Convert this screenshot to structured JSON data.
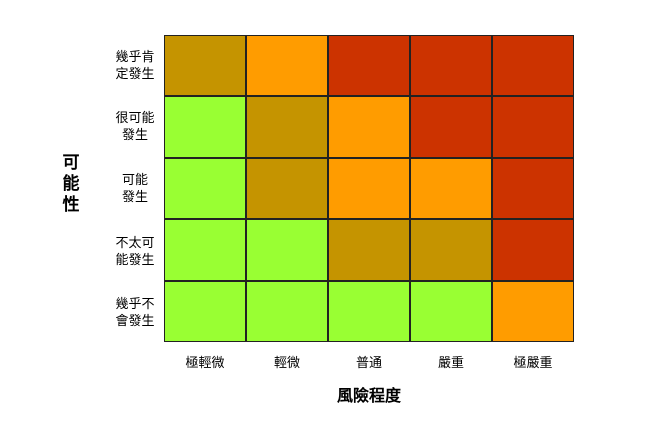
{
  "chart_data": {
    "type": "heatmap",
    "xlabel": "風險程度",
    "ylabel": "可能性",
    "x_categories": [
      "極輕微",
      "輕微",
      "普通",
      "嚴重",
      "極嚴重"
    ],
    "y_categories": [
      [
        "幾乎肯",
        "定發生"
      ],
      [
        "很可能",
        "發生"
      ],
      [
        "可能",
        "發生"
      ],
      [
        "不太可",
        "能發生"
      ],
      [
        "幾乎不",
        "會發生"
      ]
    ],
    "ylabel_chars": [
      "可",
      "能",
      "性"
    ],
    "levels": [
      [
        3,
        4,
        5,
        5,
        5
      ],
      [
        2,
        3,
        4,
        5,
        5
      ],
      [
        2,
        3,
        4,
        4,
        5
      ],
      [
        2,
        2,
        3,
        3,
        5
      ],
      [
        2,
        2,
        2,
        2,
        4
      ]
    ],
    "colors": {
      "2": "#99ff33",
      "3": "#c59400",
      "4": "#ff9c00",
      "5": "#cc3300"
    },
    "grid": true
  }
}
